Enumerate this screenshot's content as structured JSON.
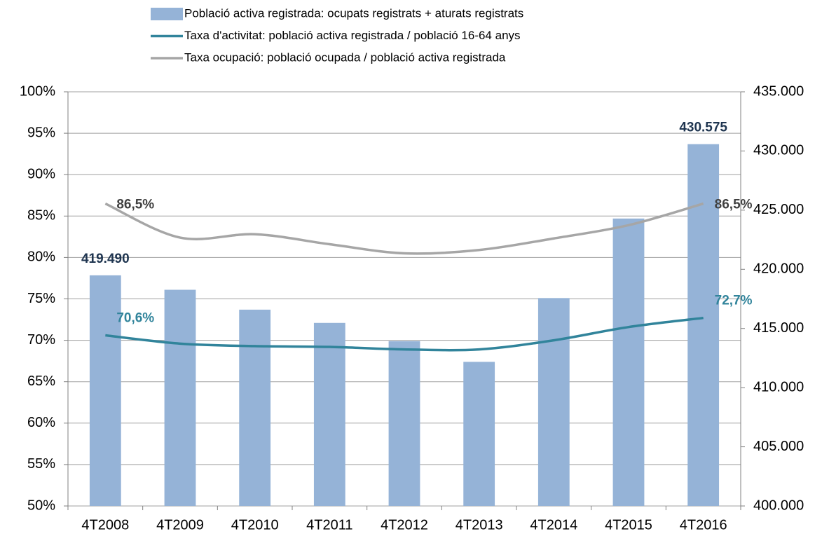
{
  "chart_data": {
    "type": "bar_line",
    "categories": [
      "4T2008",
      "4T2009",
      "4T2010",
      "4T2011",
      "4T2012",
      "4T2013",
      "4T2014",
      "4T2015",
      "4T2016"
    ],
    "series": [
      {
        "name": "Població activa registrada: ocupats registrats + aturats registrats",
        "type": "bar",
        "axis": "y2",
        "color": "#95b3d7",
        "values": [
          419490,
          418270,
          416590,
          415470,
          413930,
          412180,
          417570,
          424290,
          430575
        ],
        "value_labels": [
          "419.490",
          null,
          null,
          null,
          null,
          null,
          null,
          null,
          "430.575"
        ],
        "label_color": "#1f3550"
      },
      {
        "name": "Taxa d'activitat: població activa registrada / població 16-64 anys",
        "type": "line",
        "axis": "y",
        "color": "#31849b",
        "values": [
          70.6,
          69.6,
          69.3,
          69.2,
          68.9,
          68.9,
          70.0,
          71.6,
          72.7
        ],
        "value_labels": [
          "70,6%",
          null,
          null,
          null,
          null,
          null,
          null,
          null,
          "72,7%"
        ],
        "label_color": "#31849b"
      },
      {
        "name": "Taxa ocupació: població ocupada / població activa registrada",
        "type": "line",
        "axis": "y",
        "color": "#a6a6a6",
        "values": [
          86.5,
          82.4,
          82.8,
          81.6,
          80.5,
          80.9,
          82.3,
          83.9,
          86.5
        ],
        "value_labels": [
          "86,5%",
          null,
          null,
          null,
          null,
          null,
          null,
          null,
          "86,5%"
        ],
        "label_color": "#404040"
      }
    ],
    "ylim": [
      50,
      100
    ],
    "yticks": [
      {
        "value": 50,
        "label": "50%"
      },
      {
        "value": 55,
        "label": "55%"
      },
      {
        "value": 60,
        "label": "60%"
      },
      {
        "value": 65,
        "label": "65%"
      },
      {
        "value": 70,
        "label": "70%"
      },
      {
        "value": 75,
        "label": "75%"
      },
      {
        "value": 80,
        "label": "80%"
      },
      {
        "value": 85,
        "label": "85%"
      },
      {
        "value": 90,
        "label": "90%"
      },
      {
        "value": 95,
        "label": "95%"
      },
      {
        "value": 100,
        "label": "100%"
      }
    ],
    "y2lim": [
      400000,
      435000
    ],
    "y2ticks": [
      {
        "value": 400000,
        "label": "400.000"
      },
      {
        "value": 405000,
        "label": "405.000"
      },
      {
        "value": 410000,
        "label": "410.000"
      },
      {
        "value": 415000,
        "label": "415.000"
      },
      {
        "value": 420000,
        "label": "420.000"
      },
      {
        "value": 425000,
        "label": "425.000"
      },
      {
        "value": 430000,
        "label": "430.000"
      },
      {
        "value": 435000,
        "label": "435.000"
      }
    ],
    "grid": true,
    "legend": "top"
  }
}
